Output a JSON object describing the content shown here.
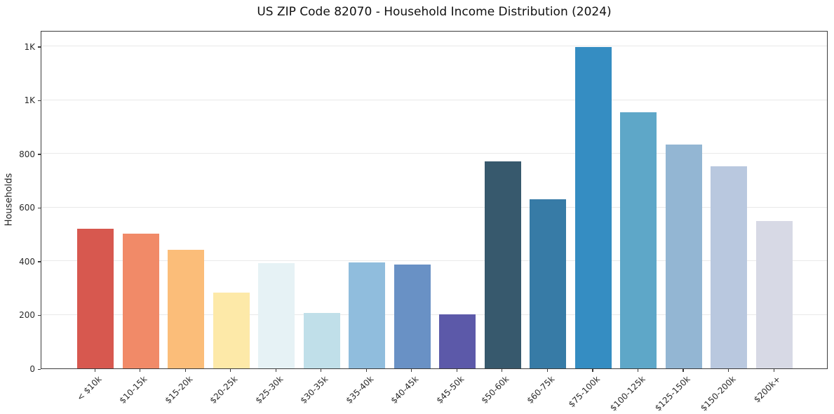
{
  "chart_data": {
    "type": "bar",
    "title": "US ZIP Code 82070 - Household Income Distribution (2024)",
    "xlabel": "",
    "ylabel": "Households",
    "categories": [
      "< $10k",
      "$10-15k",
      "$15-20k",
      "$20-25k",
      "$25-30k",
      "$30-35k",
      "$35-40k",
      "$40-45k",
      "$45-50k",
      "$50-60k",
      "$60-75k",
      "$75-100k",
      "$100-125k",
      "$125-150k",
      "$150-200k",
      "$200k+"
    ],
    "values": [
      520,
      503,
      441,
      283,
      392,
      207,
      396,
      388,
      202,
      771,
      630,
      1197,
      953,
      833,
      754,
      549
    ],
    "bar_colors": [
      "#d7584f",
      "#f18a68",
      "#fbbd79",
      "#fde9a8",
      "#e6f2f5",
      "#c0dfe9",
      "#90bddd",
      "#6991c5",
      "#5c59a9",
      "#37596d",
      "#377ba6",
      "#358dc2",
      "#5ea7c8",
      "#93b6d3",
      "#b9c8df",
      "#d7d9e5"
    ],
    "ylim": [
      0,
      1260
    ],
    "yticks": [
      {
        "value": 0,
        "label": "0"
      },
      {
        "value": 200,
        "label": "200"
      },
      {
        "value": 400,
        "label": "400"
      },
      {
        "value": 600,
        "label": "600"
      },
      {
        "value": 800,
        "label": "800"
      },
      {
        "value": 1000,
        "label": "1K"
      },
      {
        "value": 1200,
        "label": "1K"
      }
    ],
    "grid": "horizontal",
    "gridline_color": "#e9e9e9",
    "spine_color": "#3c3c3c",
    "background": "#ffffff",
    "legend": "none"
  }
}
